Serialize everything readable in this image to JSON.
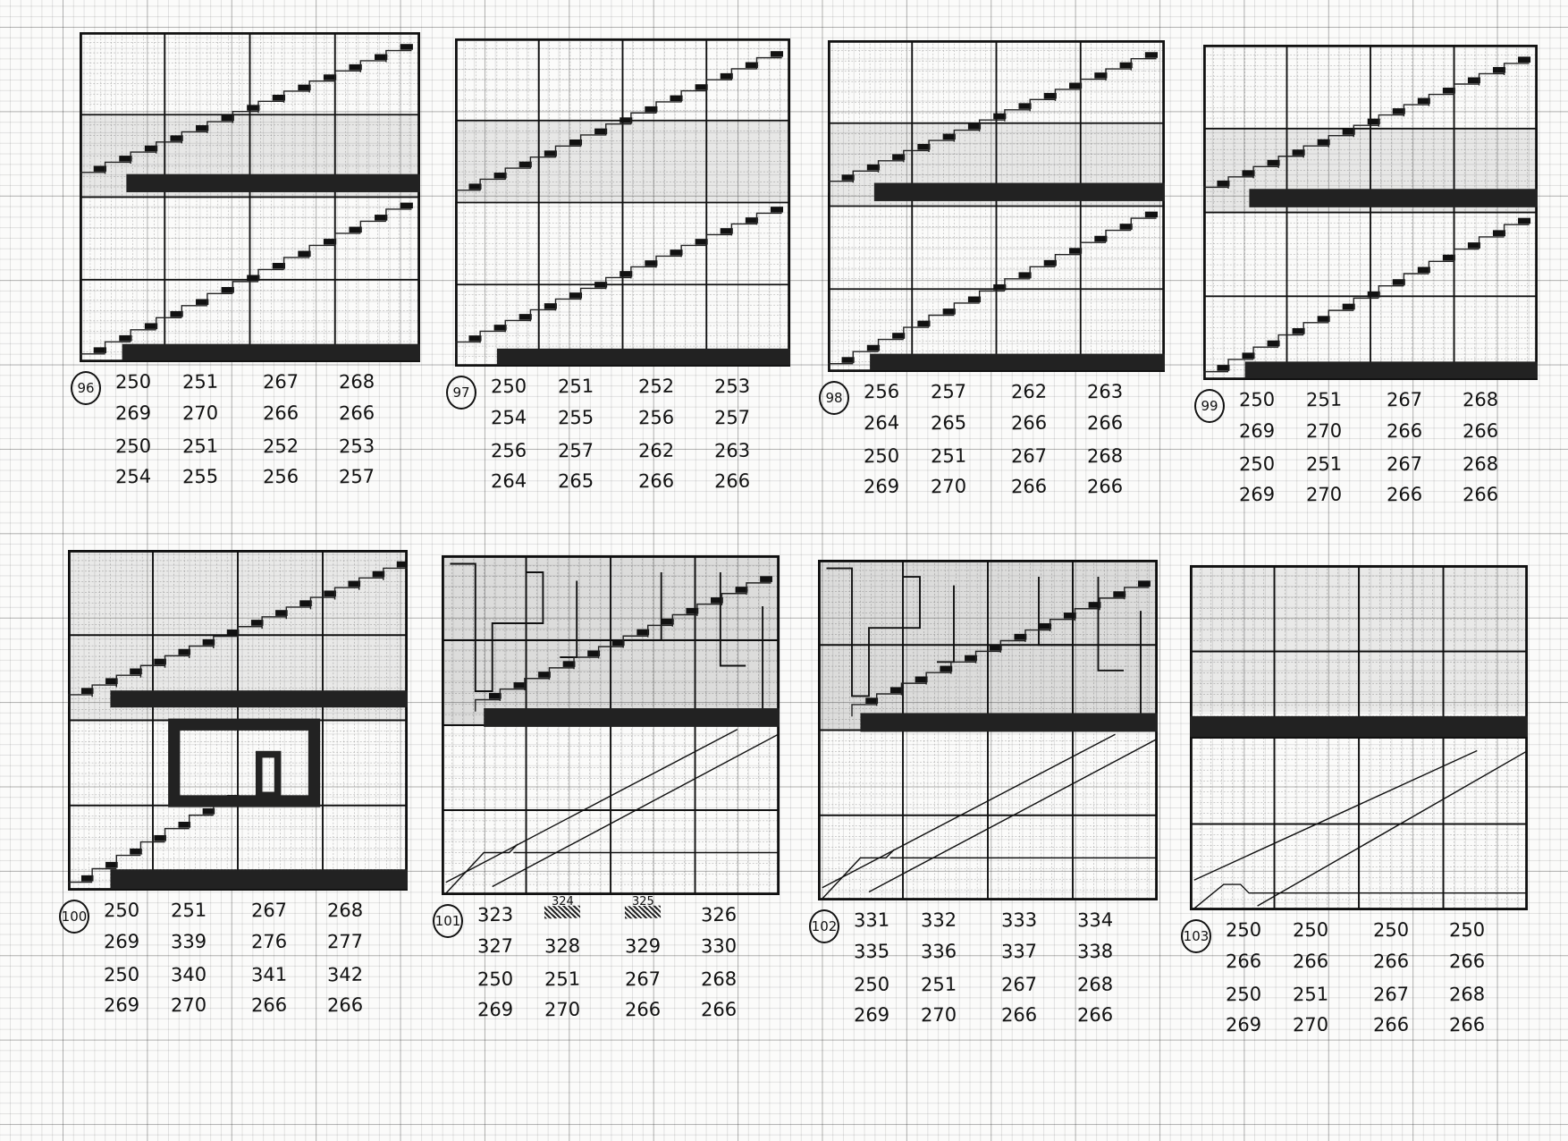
{
  "sheets": [
    {
      "label": "96",
      "kind": "double-stairs",
      "rows": [
        [
          "250",
          "251",
          "267",
          "268"
        ],
        [
          "269",
          "270",
          "266",
          "266"
        ],
        [
          "250",
          "251",
          "252",
          "253"
        ],
        [
          "254",
          "255",
          "256",
          "257"
        ]
      ]
    },
    {
      "label": "97",
      "kind": "double-stairs-low",
      "rows": [
        [
          "250",
          "251",
          "252",
          "253"
        ],
        [
          "254",
          "255",
          "256",
          "257"
        ],
        [
          "256",
          "257",
          "262",
          "263"
        ],
        [
          "264",
          "265",
          "266",
          "266"
        ]
      ]
    },
    {
      "label": "98",
      "kind": "double-stairs",
      "rows": [
        [
          "256",
          "257",
          "262",
          "263"
        ],
        [
          "264",
          "265",
          "266",
          "266"
        ],
        [
          "250",
          "251",
          "267",
          "268"
        ],
        [
          "269",
          "270",
          "266",
          "266"
        ]
      ]
    },
    {
      "label": "99",
      "kind": "double-stairs",
      "rows": [
        [
          "250",
          "251",
          "267",
          "268"
        ],
        [
          "269",
          "270",
          "266",
          "266"
        ],
        [
          "250",
          "251",
          "267",
          "268"
        ],
        [
          "269",
          "270",
          "266",
          "266"
        ]
      ]
    },
    {
      "label": "100",
      "kind": "stairs-room",
      "rows": [
        [
          "250",
          "251",
          "267",
          "268"
        ],
        [
          "269",
          "339",
          "276",
          "277"
        ],
        [
          "250",
          "340",
          "341",
          "342"
        ],
        [
          "269",
          "270",
          "266",
          "266"
        ]
      ]
    },
    {
      "label": "101",
      "kind": "blocks-lines",
      "corrections": [
        "324",
        "325"
      ],
      "rows": [
        [
          "323",
          "",
          "",
          "326"
        ],
        [
          "327",
          "328",
          "329",
          "330"
        ],
        [
          "250",
          "251",
          "267",
          "268"
        ],
        [
          "269",
          "270",
          "266",
          "266"
        ]
      ]
    },
    {
      "label": "102",
      "kind": "blocks-lines",
      "rows": [
        [
          "331",
          "332",
          "333",
          "334"
        ],
        [
          "335",
          "336",
          "337",
          "338"
        ],
        [
          "250",
          "251",
          "267",
          "268"
        ],
        [
          "269",
          "270",
          "266",
          "266"
        ]
      ]
    },
    {
      "label": "103",
      "kind": "empty-lines",
      "rows": [
        [
          "250",
          "250",
          "250",
          "250"
        ],
        [
          "266",
          "266",
          "266",
          "266"
        ],
        [
          "250",
          "251",
          "267",
          "268"
        ],
        [
          "269",
          "270",
          "266",
          "266"
        ]
      ]
    }
  ]
}
